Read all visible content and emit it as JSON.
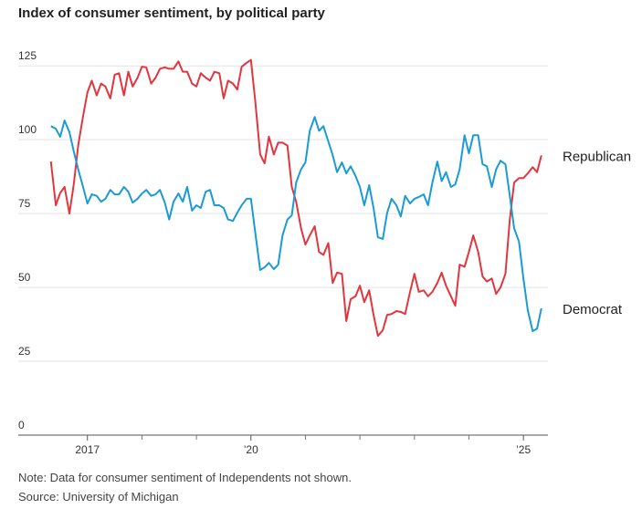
{
  "chart_data": {
    "type": "line",
    "title": "Index of consumer sentiment, by political party",
    "note": "Note: Data for consumer sentiment of Independents not shown.",
    "source": "Source: University of Michigan",
    "x": [
      2016.33,
      2016.42,
      2016.5,
      2016.58,
      2016.67,
      2016.75,
      2016.83,
      2016.92,
      2017,
      2017.08,
      2017.17,
      2017.25,
      2017.33,
      2017.42,
      2017.5,
      2017.58,
      2017.67,
      2017.75,
      2017.83,
      2017.92,
      2018,
      2018.08,
      2018.17,
      2018.25,
      2018.33,
      2018.42,
      2018.5,
      2018.58,
      2018.67,
      2018.75,
      2018.83,
      2018.92,
      2019,
      2019.08,
      2019.17,
      2019.25,
      2019.33,
      2019.42,
      2019.5,
      2019.58,
      2019.67,
      2019.75,
      2019.83,
      2019.92,
      2020,
      2020.08,
      2020.17,
      2020.25,
      2020.33,
      2020.42,
      2020.5,
      2020.58,
      2020.67,
      2020.75,
      2020.83,
      2020.92,
      2021,
      2021.08,
      2021.17,
      2021.25,
      2021.33,
      2021.42,
      2021.5,
      2021.58,
      2021.67,
      2021.75,
      2021.83,
      2021.92,
      2022,
      2022.08,
      2022.17,
      2022.25,
      2022.33,
      2022.42,
      2022.5,
      2022.58,
      2022.67,
      2022.75,
      2022.83,
      2022.92,
      2023,
      2023.08,
      2023.17,
      2023.25,
      2023.33,
      2023.42,
      2023.5,
      2023.58,
      2023.67,
      2023.75,
      2023.83,
      2023.92,
      2024,
      2024.08,
      2024.17,
      2024.25,
      2024.33,
      2024.42,
      2024.5,
      2024.58,
      2024.67,
      2024.75,
      2024.83,
      2024.92,
      2025,
      2025.08,
      2025.17,
      2025.25,
      2025.33
    ],
    "series": [
      {
        "name": "Republican",
        "color": "#e2363f",
        "values": [
          92.6,
          77.8,
          82,
          84,
          75,
          85,
          98,
          108,
          116,
          120,
          115,
          119,
          118,
          114,
          122,
          122.5,
          115,
          123,
          118,
          121,
          124.7,
          124.5,
          119,
          121,
          124,
          124.5,
          124,
          124,
          126.5,
          123,
          123,
          119,
          118,
          122.5,
          121,
          120,
          123,
          122.5,
          114,
          120,
          119,
          117,
          124.7,
          126,
          127,
          113,
          95,
          92,
          101,
          95,
          99,
          99,
          98,
          84,
          79,
          70,
          64.5,
          67.6,
          70.7,
          62,
          61,
          65,
          51.5,
          55,
          54.6,
          38.6,
          46,
          47,
          50.6,
          45,
          49,
          40.7,
          33.6,
          35.5,
          40.7,
          41,
          42,
          41.7,
          41,
          48.5,
          54.6,
          48.5,
          49,
          47,
          48.5,
          51.5,
          55,
          50.6,
          47,
          43.8,
          57.7,
          57,
          62,
          67.6,
          62,
          53.7,
          52,
          53,
          47.8,
          50,
          54.6,
          73,
          85.5,
          87,
          87,
          88.6,
          90.7,
          89,
          94.7
        ]
      },
      {
        "name": "Democrat",
        "color": "#1b9bd6",
        "values": [
          104.6,
          103.7,
          101,
          106.5,
          102.5,
          96,
          90,
          84,
          78.4,
          81.5,
          81,
          79,
          80,
          83,
          81.5,
          81.5,
          84,
          82.4,
          78.7,
          80,
          81.8,
          83,
          81,
          81.5,
          83,
          78.7,
          73,
          79,
          81.8,
          79,
          84,
          76,
          77.8,
          76.9,
          82.4,
          83,
          77.8,
          77.8,
          76.9,
          73,
          72.5,
          75.3,
          77.8,
          80,
          80,
          68.5,
          55.9,
          56.8,
          58.3,
          56.2,
          57.7,
          67.6,
          73,
          74.4,
          85.5,
          90,
          92.3,
          103,
          107.7,
          103,
          104.6,
          99.4,
          94.8,
          89,
          92.3,
          88.6,
          91,
          87.7,
          84,
          77.8,
          84.6,
          76.9,
          67,
          66.4,
          75.3,
          80,
          77.8,
          74,
          81,
          78.4,
          80,
          80.6,
          81.5,
          77.8,
          85.5,
          92.6,
          86,
          89,
          84,
          84.9,
          90,
          101.5,
          95.4,
          101.5,
          101.5,
          91.7,
          91,
          84,
          90,
          92.9,
          91.7,
          81,
          70,
          65.4,
          53,
          42.3,
          35.2,
          36,
          42.9
        ]
      }
    ],
    "xlim": [
      2016.2,
      2025.45
    ],
    "xticks": [
      {
        "value": 2017,
        "label": "2017"
      },
      {
        "value": 2020,
        "label": "’20"
      },
      {
        "value": 2025,
        "label": "’25"
      }
    ],
    "xminor_ticks": [
      2018,
      2019,
      2021,
      2022,
      2023,
      2024
    ],
    "ylim": [
      0,
      130
    ],
    "yticks": [
      0,
      25,
      50,
      75,
      100,
      125
    ],
    "grid": true
  }
}
